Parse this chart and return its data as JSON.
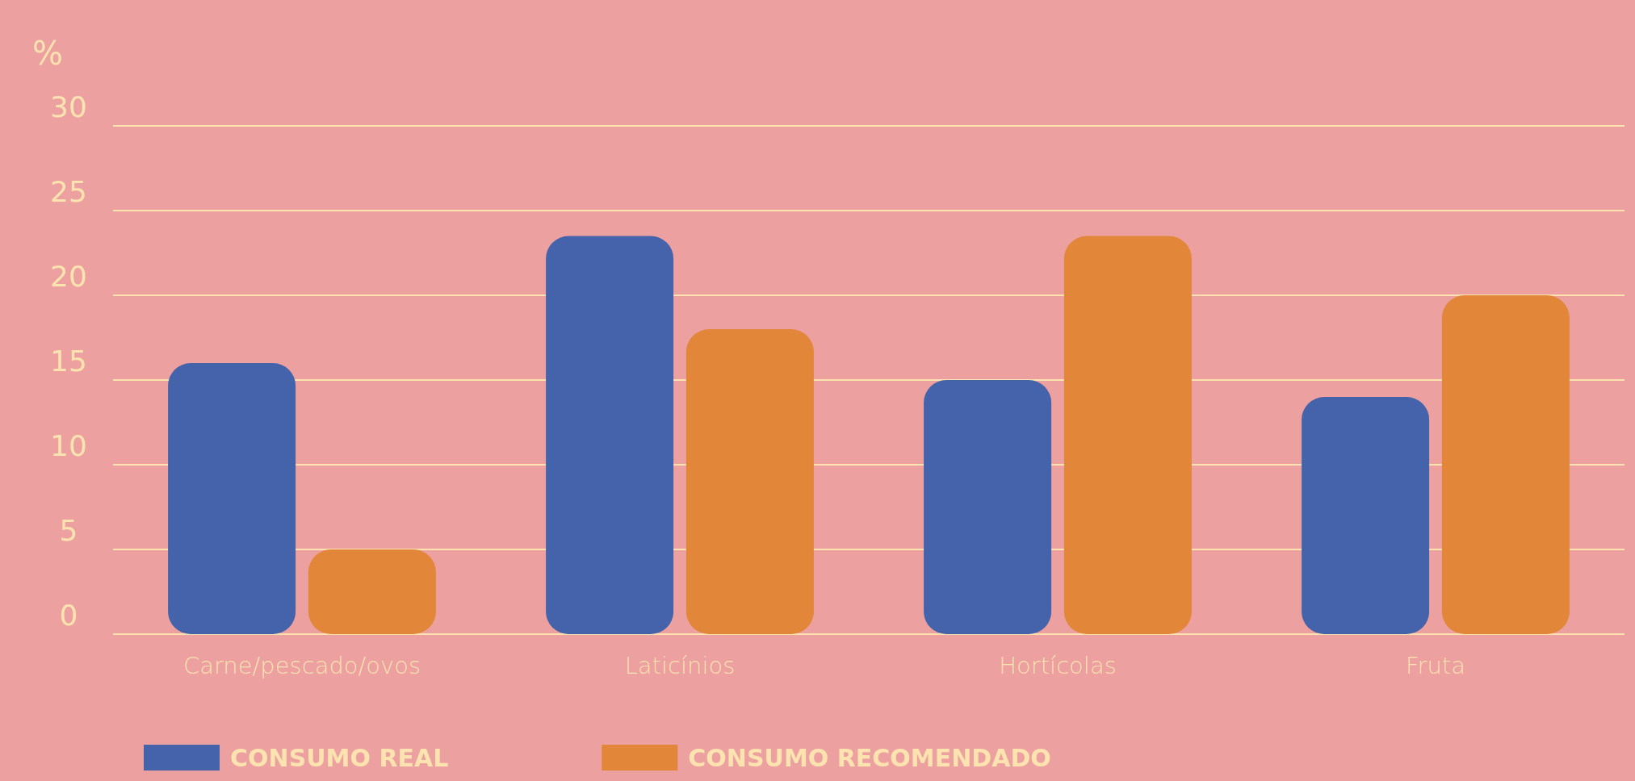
{
  "chart_data": {
    "type": "bar",
    "ylabel": "%",
    "categories": [
      "Carne/pescado/ovos",
      "Laticínios",
      "Hortícolas",
      "Fruta"
    ],
    "series": [
      {
        "name": "CONSUMO REAL",
        "color": "#4563ab",
        "values": [
          16,
          23.5,
          15,
          14
        ]
      },
      {
        "name": "CONSUMO RECOMENDADO",
        "color": "#e2873a",
        "values": [
          5,
          18,
          23.5,
          20
        ]
      }
    ],
    "ylim": [
      0,
      30
    ],
    "yticks": [
      0,
      5,
      10,
      15,
      20,
      25,
      30
    ],
    "grid": "y",
    "legend": "bottom left"
  }
}
